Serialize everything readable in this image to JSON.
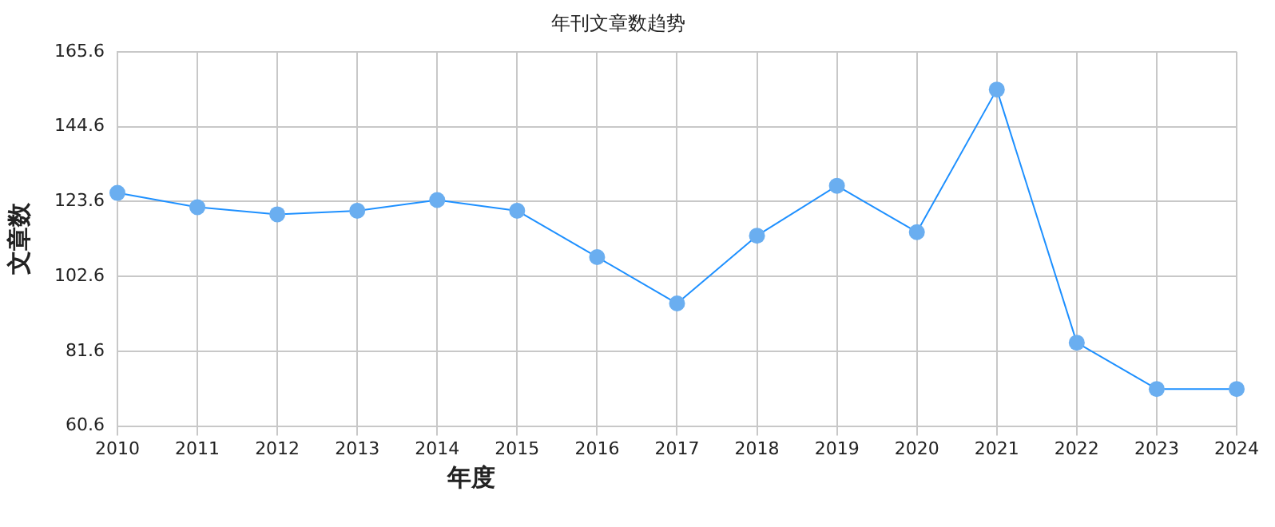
{
  "chart_data": {
    "type": "line",
    "title": "年刊文章数趋势",
    "xlabel": "年度",
    "ylabel": "文章数",
    "categories": [
      "2010",
      "2011",
      "2012",
      "2013",
      "2014",
      "2015",
      "2016",
      "2017",
      "2018",
      "2019",
      "2020",
      "2021",
      "2022",
      "2023",
      "2024"
    ],
    "series": [
      {
        "color": "#1e90ff",
        "values": [
          126,
          122,
          120,
          121,
          124,
          121,
          108,
          95,
          114,
          128,
          115,
          155,
          84,
          71,
          71
        ]
      }
    ],
    "ylim": [
      60.6,
      165.6
    ],
    "yticks": [
      60.6,
      81.6,
      102.6,
      123.6,
      144.6,
      165.6
    ],
    "grid": true,
    "legend": false,
    "marker": "circle",
    "line_style": "solid"
  }
}
